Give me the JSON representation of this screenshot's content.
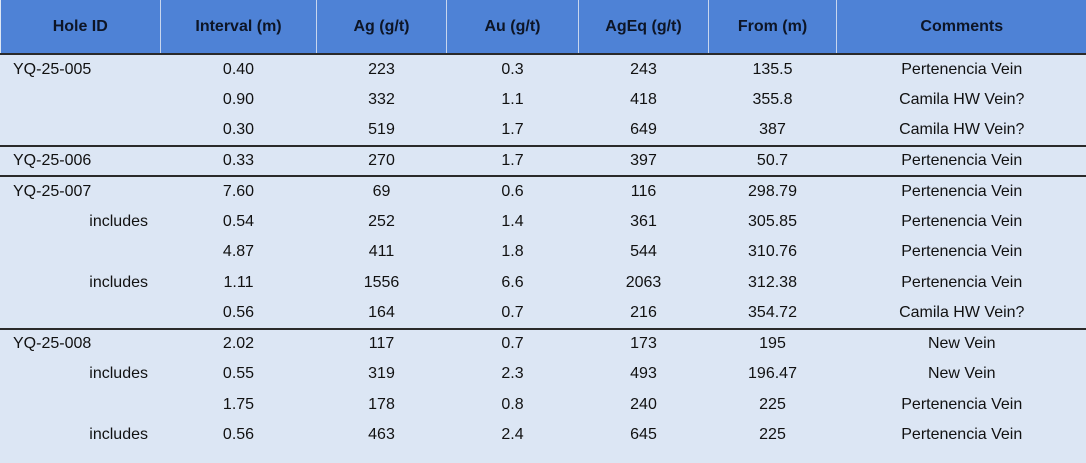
{
  "table": {
    "headers": [
      "Hole ID",
      "Interval (m)",
      "Ag (g/t)",
      "Au (g/t)",
      "AgEq (g/t)",
      "From (m)",
      "Comments"
    ],
    "groups": [
      {
        "hole_id": "YQ-25-005",
        "rows": [
          {
            "cells": [
              "0.40",
              "223",
              "0.3",
              "243",
              "135.5",
              "Pertenencia Vein"
            ]
          },
          {
            "cells": [
              "0.90",
              "332",
              "1.1",
              "418",
              "355.8",
              "Camila HW Vein?"
            ]
          },
          {
            "cells": [
              "0.30",
              "519",
              "1.7",
              "649",
              "387",
              "Camila HW Vein?"
            ]
          }
        ]
      },
      {
        "hole_id": "YQ-25-006",
        "rows": [
          {
            "cells": [
              "0.33",
              "270",
              "1.7",
              "397",
              "50.7",
              "Pertenencia Vein"
            ]
          }
        ]
      },
      {
        "hole_id": "YQ-25-007",
        "rows": [
          {
            "cells": [
              "7.60",
              "69",
              "0.6",
              "116",
              "298.79",
              "Pertenencia Vein"
            ]
          },
          {
            "label": "includes",
            "cells": [
              "0.54",
              "252",
              "1.4",
              "361",
              "305.85",
              "Pertenencia Vein"
            ]
          },
          {
            "cells": [
              "4.87",
              "411",
              "1.8",
              "544",
              "310.76",
              "Pertenencia Vein"
            ]
          },
          {
            "label": "includes",
            "cells": [
              "1.11",
              "1556",
              "6.6",
              "2063",
              "312.38",
              "Pertenencia Vein"
            ]
          },
          {
            "cells": [
              "0.56",
              "164",
              "0.7",
              "216",
              "354.72",
              "Camila HW Vein?"
            ]
          }
        ]
      },
      {
        "hole_id": "YQ-25-008",
        "rows": [
          {
            "cells": [
              "2.02",
              "117",
              "0.7",
              "173",
              "195",
              "New Vein"
            ]
          },
          {
            "label": "includes",
            "cells": [
              "0.55",
              "319",
              "2.3",
              "493",
              "196.47",
              "New Vein"
            ]
          },
          {
            "cells": [
              "1.75",
              "178",
              "0.8",
              "240",
              "225",
              "Pertenencia Vein"
            ]
          },
          {
            "label": "includes",
            "cells": [
              "0.56",
              "463",
              "2.4",
              "645",
              "225",
              "Pertenencia Vein"
            ]
          }
        ]
      }
    ]
  }
}
